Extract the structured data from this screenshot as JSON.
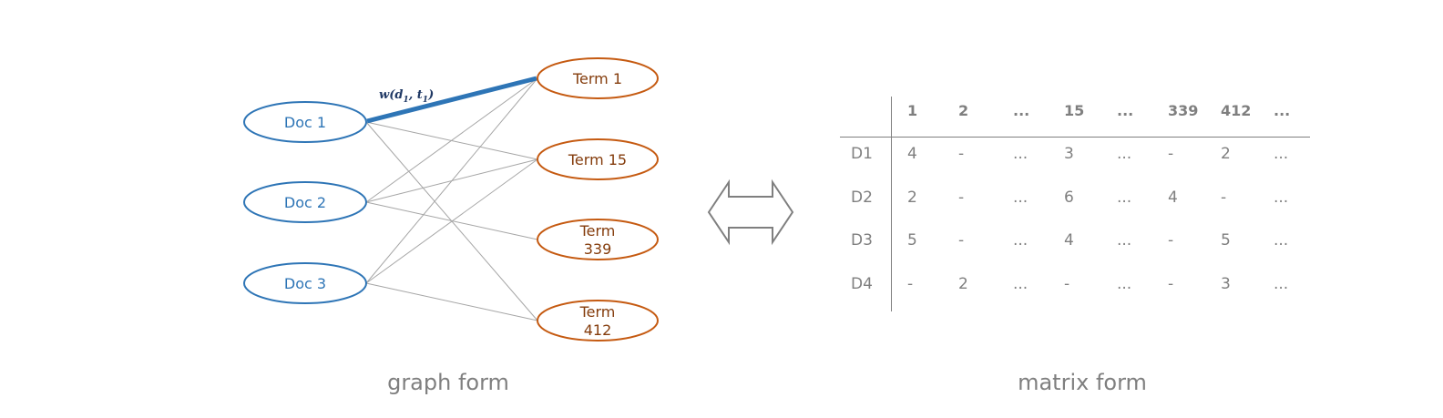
{
  "graph": {
    "edge_label": {
      "w": "w",
      "d": "d",
      "d_sub": "1",
      "t": "t",
      "t_sub": "1"
    },
    "docs": [
      "Doc 1",
      "Doc 2",
      "Doc 3"
    ],
    "terms": [
      [
        "Term 1"
      ],
      [
        "Term 15"
      ],
      [
        "Term",
        "339"
      ],
      [
        "Term",
        "412"
      ]
    ],
    "colors": {
      "doc": "#2e75b6",
      "term": "#c55a11",
      "term_text": "#843c0c",
      "edge": "#a6a6a6",
      "highlight": "#2e75b6"
    },
    "edges": [
      [
        0,
        0
      ],
      [
        0,
        1
      ],
      [
        0,
        3
      ],
      [
        1,
        0
      ],
      [
        1,
        1
      ],
      [
        1,
        2
      ],
      [
        2,
        0
      ],
      [
        2,
        1
      ],
      [
        2,
        3
      ]
    ],
    "highlight_edge": [
      0,
      0
    ],
    "caption": "graph form"
  },
  "matrix": {
    "columns": [
      "1",
      "2",
      "...",
      "15",
      "...",
      "339",
      "412",
      "..."
    ],
    "rows": [
      {
        "label": "D1",
        "cells": [
          "4",
          "-",
          "...",
          "3",
          "...",
          "-",
          "2",
          "..."
        ]
      },
      {
        "label": "D2",
        "cells": [
          "2",
          "-",
          "...",
          "6",
          "...",
          "4",
          "-",
          "..."
        ]
      },
      {
        "label": "D3",
        "cells": [
          "5",
          "-",
          "...",
          "4",
          "...",
          "-",
          "5",
          "..."
        ]
      },
      {
        "label": "D4",
        "cells": [
          "-",
          "2",
          "...",
          "-",
          "...",
          "-",
          "3",
          "..."
        ]
      }
    ],
    "caption": "matrix form"
  },
  "arrow": {
    "icon": "double-arrow-icon"
  }
}
